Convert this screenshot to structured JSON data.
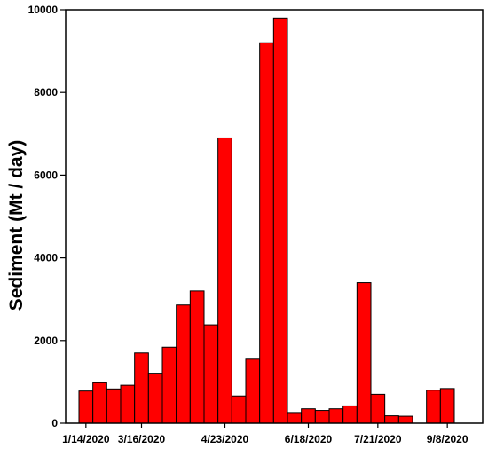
{
  "chart_data": {
    "type": "bar",
    "title": "",
    "xlabel": "",
    "ylabel": "Sediment (Mt / day)",
    "ylim": [
      0,
      10000
    ],
    "yticks": [
      0,
      2000,
      4000,
      6000,
      8000,
      10000
    ],
    "xtick_labels": [
      "1/14/2020",
      "3/16/2020",
      "4/23/2020",
      "6/18/2020",
      "7/21/2020",
      "9/8/2020"
    ],
    "xtick_slots": [
      0,
      4,
      10,
      16,
      21,
      26
    ],
    "slot_count": 30,
    "bar_color": "#ff0000",
    "values": [
      780,
      980,
      830,
      920,
      1700,
      1210,
      1840,
      2860,
      3200,
      2380,
      6900,
      660,
      1550,
      9200,
      9800,
      260,
      350,
      310,
      350,
      420,
      3400,
      700,
      180,
      170,
      null,
      800,
      840,
      null,
      null,
      null
    ],
    "grid": false
  }
}
